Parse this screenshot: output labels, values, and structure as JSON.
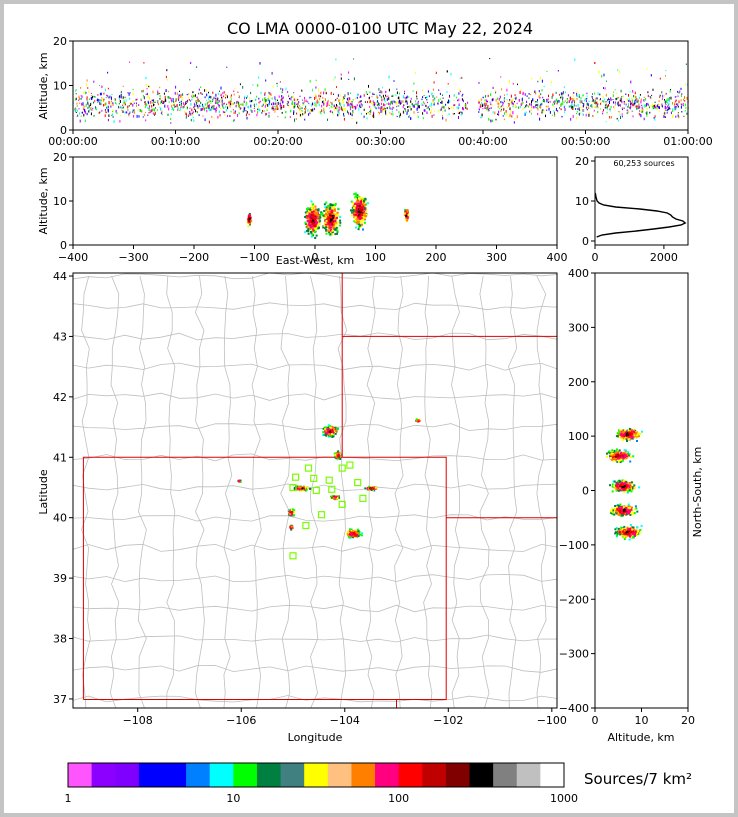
{
  "title": "CO LMA 0000-0100 UTC May 22, 2024",
  "colors": {
    "border": "#c4c4c4",
    "state_line": "#dd0000",
    "county_line": "#bfbfbf",
    "station": "#7cfc00"
  },
  "chart_data": [
    {
      "id": "time-height",
      "type": "scatter",
      "ylabel": "Altitude, km",
      "ylim": [
        0,
        20
      ],
      "yticks": [
        0,
        10,
        20
      ],
      "xlim": [
        0,
        60
      ],
      "xticks": [
        "00:00:00",
        "00:10:00",
        "00:20:00",
        "00:30:00",
        "00:40:00",
        "00:50:00",
        "01:00:00"
      ]
    },
    {
      "id": "ew-altitude",
      "type": "heatmap",
      "xlabel": "East-West, km",
      "ylabel": "Altitude, km",
      "xlim": [
        -400,
        400
      ],
      "ylim": [
        0,
        20
      ],
      "xticks": [
        "−400",
        "−300",
        "−200",
        "−100",
        "0",
        "100",
        "200",
        "300",
        "400"
      ],
      "yticks": [
        0,
        10,
        20
      ],
      "clusters": [
        {
          "x": -5,
          "z": 6
        },
        {
          "x": 25,
          "z": 6
        },
        {
          "x": 72,
          "z": 8
        },
        {
          "x": -110,
          "z": 6
        },
        {
          "x": 150,
          "z": 7
        }
      ]
    },
    {
      "id": "altitude-histogram",
      "type": "line",
      "annotation": "60,253 sources",
      "xlim": [
        0,
        2700
      ],
      "ylim": [
        -1,
        21
      ],
      "xticks": [
        0,
        2000
      ],
      "yticks": [
        0,
        10,
        20
      ],
      "altitude_km": [
        1,
        1.5,
        2,
        2.5,
        3,
        3.5,
        4,
        4.5,
        5,
        5.5,
        6,
        6.5,
        7,
        7.5,
        8,
        8.5,
        9,
        9.5,
        10,
        11,
        12
      ],
      "counts": [
        50,
        200,
        600,
        1200,
        1700,
        2150,
        2500,
        2620,
        2550,
        2350,
        2250,
        2200,
        2100,
        1800,
        1300,
        600,
        250,
        120,
        60,
        30,
        10
      ]
    },
    {
      "id": "plan-view",
      "type": "heatmap",
      "xlabel": "Longitude",
      "ylabel": "Latitude",
      "xlim": [
        -109.25,
        -99.9
      ],
      "ylim": [
        36.85,
        44.05
      ],
      "xticks": [
        -108,
        -106,
        -104,
        -102,
        -100
      ],
      "xtick_labels": [
        "−108",
        "−106",
        "−104",
        "−102",
        "−100"
      ],
      "yticks": [
        37,
        38,
        39,
        40,
        41,
        42,
        43,
        44
      ],
      "clusters": [
        {
          "lon": -104.3,
          "lat": 41.45,
          "r": [
            0.25,
            0.15
          ]
        },
        {
          "lon": -104.15,
          "lat": 41.05,
          "r": [
            0.1,
            0.12
          ]
        },
        {
          "lon": -104.85,
          "lat": 40.5,
          "r": [
            0.25,
            0.06
          ]
        },
        {
          "lon": -105.05,
          "lat": 40.1,
          "r": [
            0.1,
            0.1
          ]
        },
        {
          "lon": -105.05,
          "lat": 39.85,
          "r": [
            0.07,
            0.06
          ]
        },
        {
          "lon": -103.85,
          "lat": 39.75,
          "r": [
            0.25,
            0.12
          ]
        },
        {
          "lon": -103.5,
          "lat": 40.5,
          "r": [
            0.2,
            0.05
          ]
        },
        {
          "lon": -104.2,
          "lat": 40.35,
          "r": [
            0.15,
            0.05
          ]
        },
        {
          "lon": -106.05,
          "lat": 40.62,
          "r": [
            0.05,
            0.03
          ]
        },
        {
          "lon": -102.6,
          "lat": 41.62,
          "r": [
            0.08,
            0.04
          ]
        }
      ],
      "stations": [
        [
          -104.7,
          40.82
        ],
        [
          -104.05,
          40.82
        ],
        [
          -103.9,
          40.87
        ],
        [
          -104.95,
          40.67
        ],
        [
          -104.6,
          40.65
        ],
        [
          -104.3,
          40.62
        ],
        [
          -103.75,
          40.58
        ],
        [
          -105.0,
          40.5
        ],
        [
          -104.55,
          40.45
        ],
        [
          -104.25,
          40.47
        ],
        [
          -103.65,
          40.32
        ],
        [
          -104.05,
          40.22
        ],
        [
          -104.45,
          40.05
        ],
        [
          -104.75,
          39.87
        ],
        [
          -105.0,
          39.37
        ]
      ]
    },
    {
      "id": "ns-altitude",
      "type": "heatmap",
      "xlabel": "Altitude, km",
      "ylabel": "North-South, km",
      "xlim": [
        0,
        20
      ],
      "ylim": [
        -400,
        400
      ],
      "xticks": [
        0,
        10,
        20
      ],
      "yticks": [
        "−400",
        "−300",
        "−200",
        "−100",
        "0",
        "100",
        "200",
        "300",
        "400"
      ],
      "clusters": [
        {
          "ns": 105,
          "z": 7
        },
        {
          "ns": 65,
          "z": 5
        },
        {
          "ns": 10,
          "z": 6
        },
        {
          "ns": -35,
          "z": 6
        },
        {
          "ns": -75,
          "z": 7
        }
      ]
    },
    {
      "id": "colorbar",
      "type": "bar",
      "label": "Sources/7 km²",
      "tick_labels": [
        "1",
        "10",
        "100",
        "1000"
      ],
      "colors": [
        "#ff55ff",
        "#8b00ff",
        "#8000ff",
        "#0000ff",
        "#0000ff",
        "#0080ff",
        "#00ffff",
        "#00ff00",
        "#008040",
        "#408080",
        "#ffff00",
        "#ffc080",
        "#ff8000",
        "#ff0080",
        "#ff0000",
        "#c00000",
        "#800000",
        "#000000",
        "#808080",
        "#c0c0c0",
        "#ffffff"
      ]
    }
  ]
}
